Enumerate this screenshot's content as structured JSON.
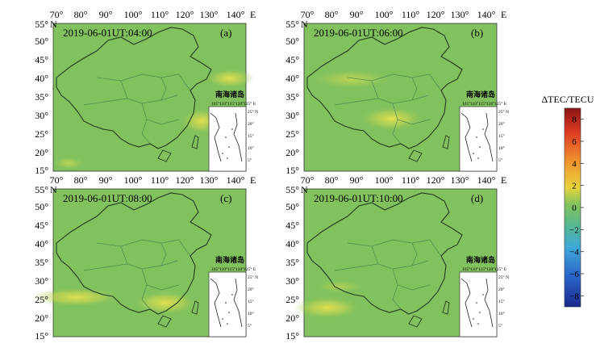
{
  "axes": {
    "top_lon_labels": [
      "70°",
      "80°",
      "90°",
      "100°",
      "110°",
      "120°",
      "130°",
      "140°"
    ],
    "top_lon_suffix": "E",
    "left_lat_labels": [
      "55°",
      "50°",
      "45°",
      "40°",
      "35°",
      "30°",
      "25°",
      "20°",
      "15°"
    ],
    "top_lat_suffix": "N"
  },
  "panels": [
    {
      "time": "2019-06-01UT:04:00",
      "letter": "(a)"
    },
    {
      "time": "2019-06-01UT:06:00",
      "letter": "(b)"
    },
    {
      "time": "2019-06-01UT:08:00",
      "letter": "(c)"
    },
    {
      "time": "2019-06-01UT:10:00",
      "letter": "(d)"
    }
  ],
  "inset": {
    "title": "南海诸岛",
    "lon_labels": [
      "105°",
      "110°",
      "115°",
      "120°",
      "125° E"
    ],
    "lat_labels": [
      "25° N",
      "20°",
      "15°",
      "10°",
      "5°"
    ]
  },
  "colorbar": {
    "title": "ΔTEC/TECU",
    "ticks": [
      "8",
      "6",
      "4",
      "2",
      "0",
      "−2",
      "−4",
      "−6",
      "−8"
    ],
    "range": [
      -9,
      9
    ],
    "colors": [
      "#1a2a8c",
      "#2b63c9",
      "#3fa9d8",
      "#5ab98a",
      "#86c35a",
      "#e7d43c",
      "#f19a2e",
      "#de3b24",
      "#8a1414"
    ]
  },
  "colors": {
    "map_bg": "#82c25e",
    "anomaly": "#e4de53",
    "border": "#1f3b1f",
    "province": "#4e8a4e"
  }
}
